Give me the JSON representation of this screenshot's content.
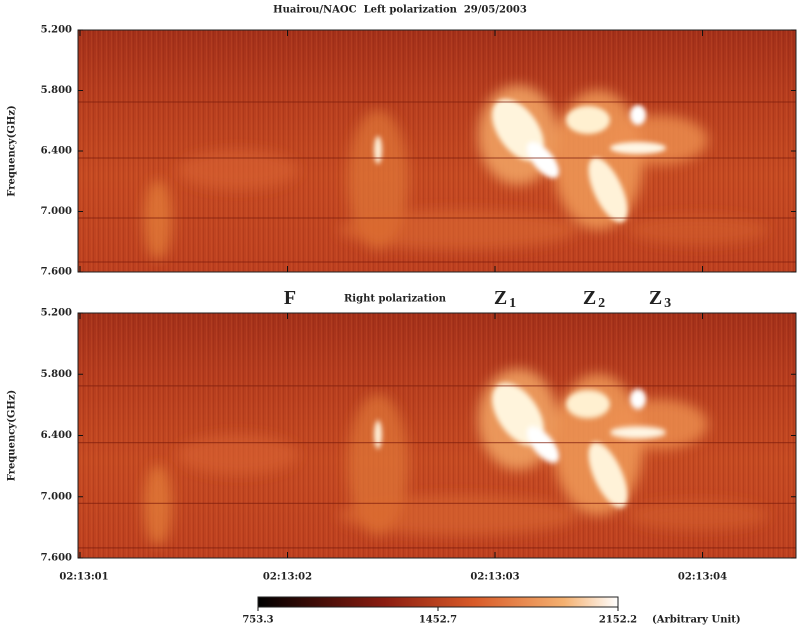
{
  "chart_data": [
    {
      "type": "heatmap",
      "title": "Huairou/NAOC  Left polarization  29/05/2003",
      "ylabel": "Frequency(GHz)",
      "ylim": [
        5.2,
        7.6
      ],
      "y_inverted": true,
      "yticks": [
        {
          "value": 5.2,
          "label": "5.200"
        },
        {
          "value": 5.8,
          "label": "5.800"
        },
        {
          "value": 6.4,
          "label": "6.400"
        },
        {
          "value": 7.0,
          "label": "7.000"
        },
        {
          "value": 7.6,
          "label": "7.600"
        }
      ]
    },
    {
      "type": "heatmap",
      "title": "Right polarization",
      "ylabel": "Frequency(GHz)",
      "ylim": [
        5.2,
        7.6
      ],
      "y_inverted": true,
      "yticks": [
        {
          "value": 5.2,
          "label": "5.200"
        },
        {
          "value": 5.8,
          "label": "5.800"
        },
        {
          "value": 6.4,
          "label": "6.400"
        },
        {
          "value": 7.0,
          "label": "7.000"
        },
        {
          "value": 7.6,
          "label": "7.600"
        }
      ],
      "xticks": [
        "02:13:01",
        "02:13:02",
        "02:13:03",
        "02:13:04"
      ],
      "annotations": [
        {
          "text": "F"
        },
        {
          "text": "Z",
          "subscript": "1"
        },
        {
          "text": "Z",
          "subscript": "2"
        },
        {
          "text": "Z",
          "subscript": "3"
        }
      ],
      "colorbar": {
        "ticks": [
          753.3,
          1452.7,
          2152.2
        ],
        "unit": "(Arbitrary Unit)"
      }
    }
  ]
}
